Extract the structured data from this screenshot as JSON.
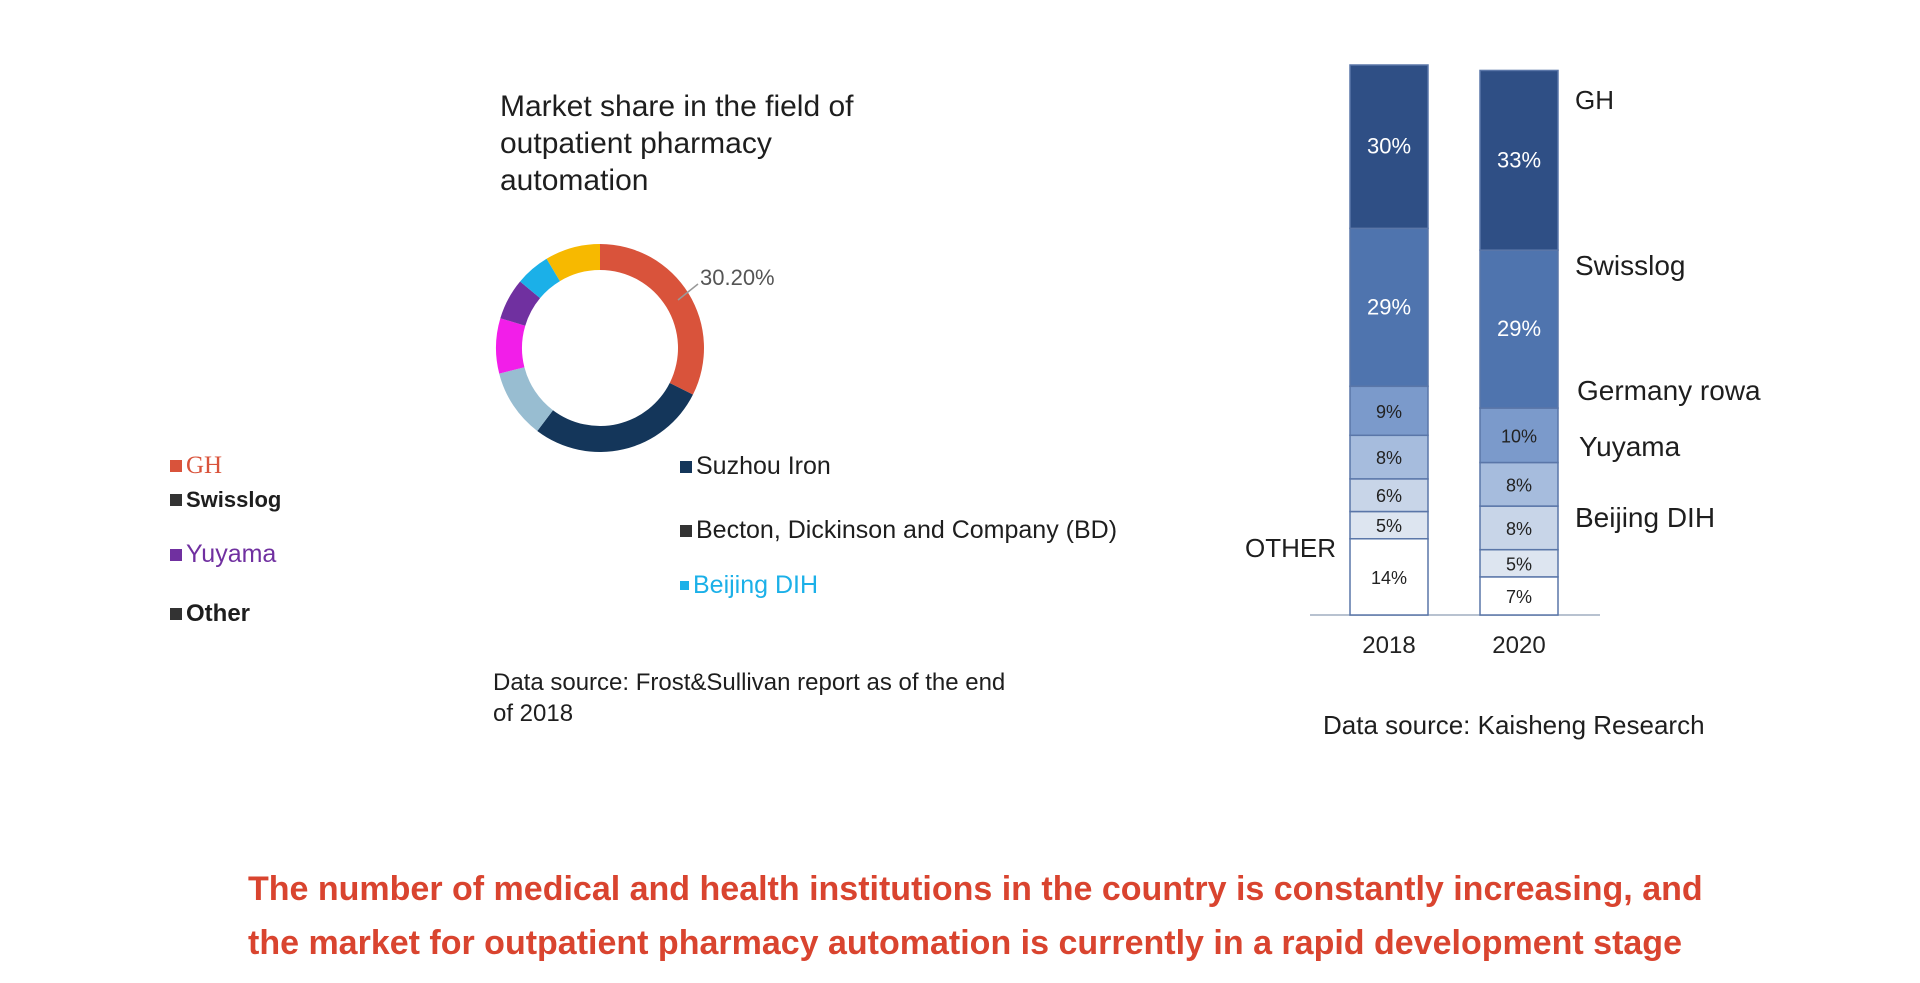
{
  "colors": {
    "GH": "#d9533b",
    "Suzhou Iron": "#14365a",
    "Becton": "#98bdd1",
    "Pink": "#f21ee9",
    "Yuyama": "#7030a0",
    "Beijing DIH": "#1bb0e8",
    "Yellow": "#f7b900",
    "headline": "#d9442f"
  },
  "chart_data": [
    {
      "type": "pie",
      "title": "Market share in the field of outpatient pharmacy automation",
      "annotation": "30.20%",
      "legend": [
        {
          "label": "GH",
          "color": "#d9533b"
        },
        {
          "label": "Swisslog",
          "color": "#333333"
        },
        {
          "label": "Yuyama",
          "color": "#7030a0"
        },
        {
          "label": "Other",
          "color": "#333333"
        },
        {
          "label": "Suzhou Iron",
          "color": "#14365a"
        },
        {
          "label": "Becton, Dickinson and Company (BD)",
          "color": "#333333"
        },
        {
          "label": "Beijing DIH",
          "color": "#1bb0e8"
        }
      ],
      "slices": [
        {
          "value": 30.2,
          "color": "#d9533b"
        },
        {
          "value": 26.0,
          "color": "#14365a"
        },
        {
          "value": 10.0,
          "color": "#98bdd1"
        },
        {
          "value": 8.0,
          "color": "#f21ee9"
        },
        {
          "value": 6.0,
          "color": "#7030a0"
        },
        {
          "value": 5.0,
          "color": "#1bb0e8"
        },
        {
          "value": 8.0,
          "color": "#f7b900"
        }
      ],
      "source": "Data source: Frost&Sullivan report as of the end of 2018"
    },
    {
      "type": "bar",
      "stacked": true,
      "categories": [
        "2018",
        "2020"
      ],
      "series": [
        {
          "name": "OTHER",
          "values": [
            14,
            7
          ]
        },
        {
          "name": "Beijing DIH",
          "values": [
            5,
            5
          ]
        },
        {
          "name": "Yuyama",
          "values": [
            6,
            8
          ]
        },
        {
          "name": "Germany rowa",
          "values": [
            8,
            8
          ]
        },
        {
          "name": "Swisslog",
          "values": [
            9,
            10
          ]
        },
        {
          "name": "",
          "values": [
            29,
            29
          ]
        },
        {
          "name": "GH",
          "values": [
            30,
            33
          ]
        }
      ],
      "labels_2018": [
        "14%",
        "5%",
        "6%",
        "8%",
        "9%",
        "29%",
        "30%"
      ],
      "labels_2020": [
        "7%",
        "5%",
        "8%",
        "8%",
        "10%",
        "29%",
        "33%"
      ],
      "source": "Data source: Kaisheng Research"
    }
  ],
  "headline": {
    "line1": "The number of medical and health institutions in the country is constantly increasing, and",
    "line2": "the market for outpatient pharmacy automation is currently in a rapid development stage"
  }
}
